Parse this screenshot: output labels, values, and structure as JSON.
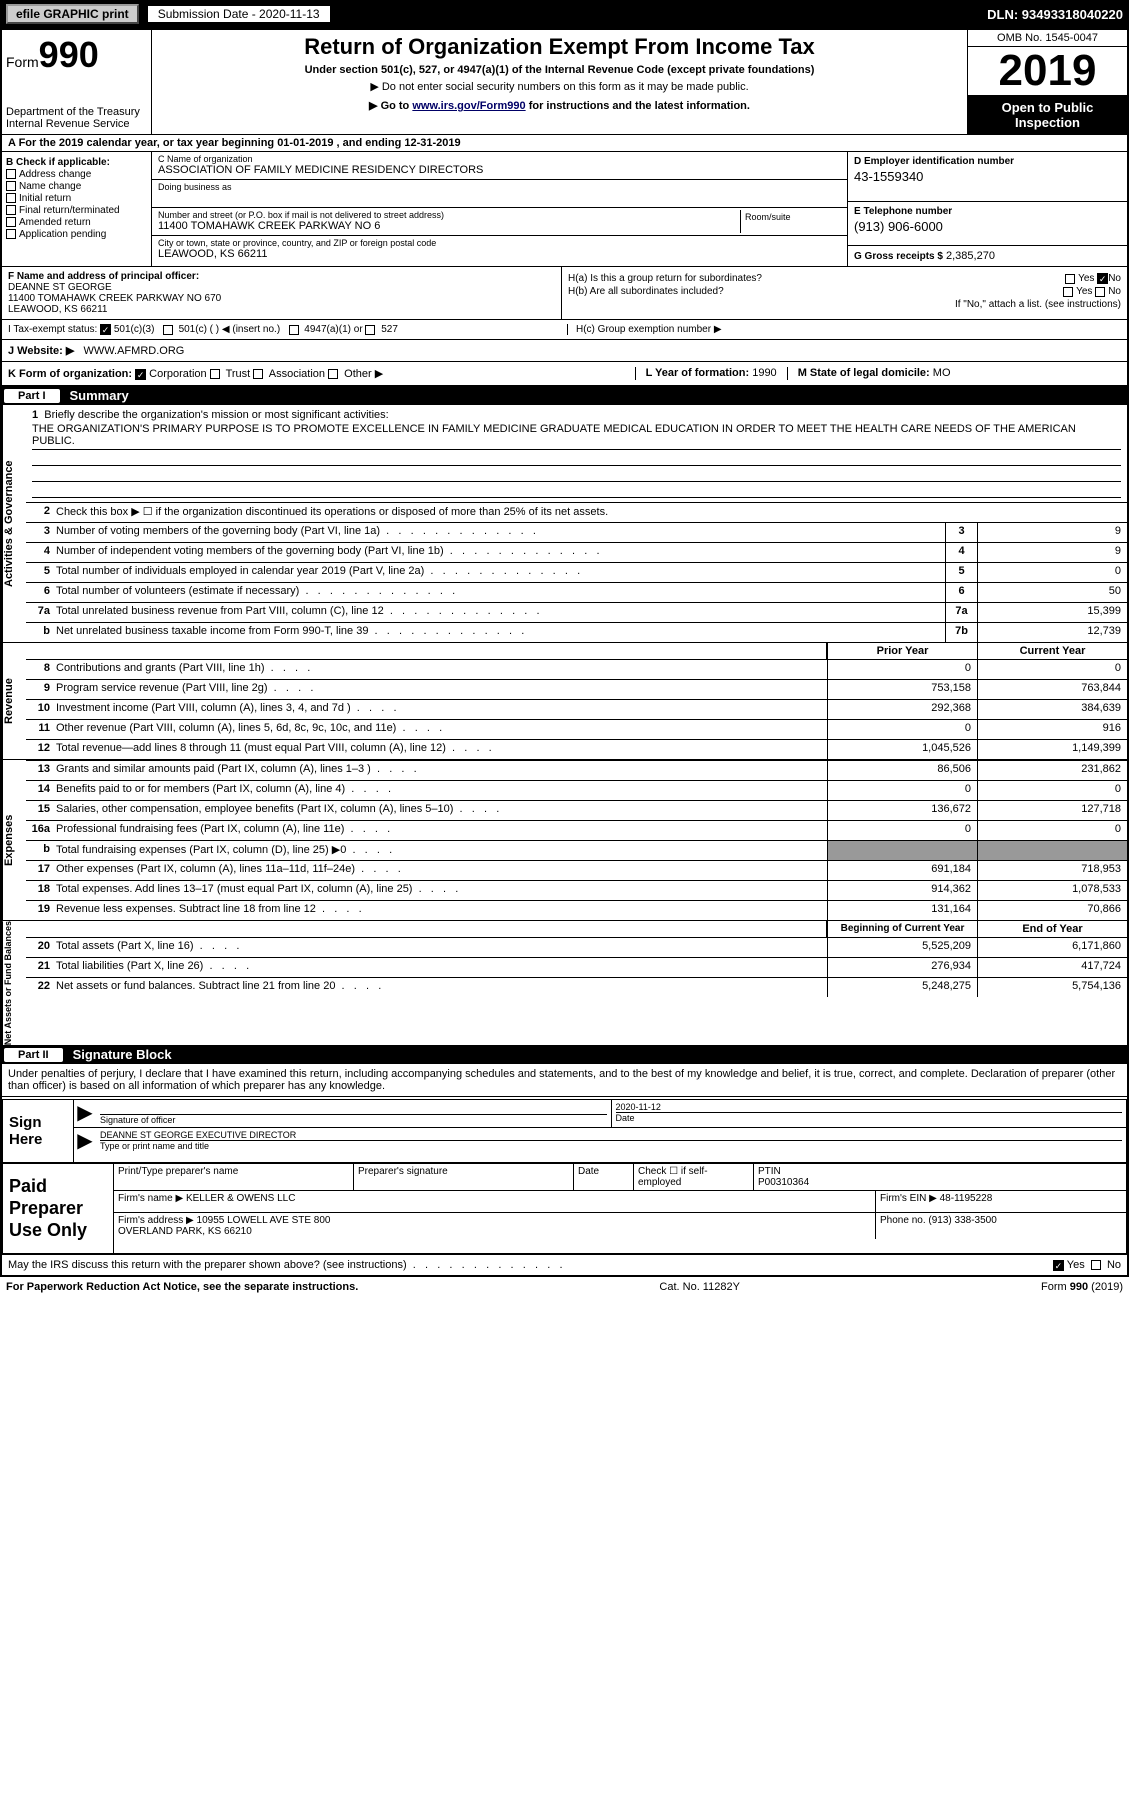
{
  "topbar": {
    "efile": "efile GRAPHIC print",
    "submission": "Submission Date - 2020-11-13",
    "dln": "DLN: 93493318040220"
  },
  "header": {
    "form_label": "Form",
    "form_num": "990",
    "dept": "Department of the Treasury\nInternal Revenue Service",
    "title": "Return of Organization Exempt From Income Tax",
    "sub1": "Under section 501(c), 527, or 4947(a)(1) of the Internal Revenue Code (except private foundations)",
    "sub2": "Do not enter social security numbers on this form as it may be made public.",
    "sub3_pre": "Go to ",
    "sub3_link": "www.irs.gov/Form990",
    "sub3_post": " for instructions and the latest information.",
    "omb": "OMB No. 1545-0047",
    "year": "2019",
    "inspection": "Open to Public Inspection"
  },
  "period": {
    "text": "A For the 2019 calendar year, or tax year beginning 01-01-2019    , and ending 12-31-2019"
  },
  "boxB": {
    "header": "B Check if applicable:",
    "opts": [
      "Address change",
      "Name change",
      "Initial return",
      "Final return/terminated",
      "Amended return",
      "Application pending"
    ]
  },
  "boxC": {
    "name_lbl": "C Name of organization",
    "name": "ASSOCIATION OF FAMILY MEDICINE RESIDENCY DIRECTORS",
    "dba_lbl": "Doing business as",
    "addr_lbl": "Number and street (or P.O. box if mail is not delivered to street address)",
    "room_lbl": "Room/suite",
    "addr": "11400 TOMAHAWK CREEK PARKWAY NO 6",
    "city_lbl": "City or town, state or province, country, and ZIP or foreign postal code",
    "city": "LEAWOOD, KS  66211"
  },
  "boxD": {
    "lbl": "D Employer identification number",
    "val": "43-1559340"
  },
  "boxE": {
    "lbl": "E Telephone number",
    "val": "(913) 906-6000"
  },
  "boxG": {
    "lbl": "G Gross receipts $",
    "val": "2,385,270"
  },
  "boxF": {
    "lbl": "F Name and address of principal officer:",
    "name": "DEANNE ST GEORGE",
    "addr": "11400 TOMAHAWK CREEK PARKWAY NO 670\nLEAWOOD, KS  66211"
  },
  "boxH": {
    "a": "H(a)  Is this a group return for subordinates?",
    "a_yes": "Yes",
    "a_no": "No",
    "b": "H(b)  Are all subordinates included?",
    "b_note": "If \"No,\" attach a list. (see instructions)",
    "c": "H(c)  Group exemption number ▶"
  },
  "boxI": {
    "lbl": "I   Tax-exempt status:",
    "o1": "501(c)(3)",
    "o2": "501(c) (  ) ◀ (insert no.)",
    "o3": "4947(a)(1) or",
    "o4": "527"
  },
  "boxJ": {
    "lbl": "J   Website: ▶",
    "val": "WWW.AFMRD.ORG"
  },
  "boxK": {
    "lbl": "K Form of organization:",
    "opts": [
      "Corporation",
      "Trust",
      "Association",
      "Other ▶"
    ]
  },
  "boxL": {
    "lbl": "L Year of formation:",
    "val": "1990"
  },
  "boxM": {
    "lbl": "M State of legal domicile:",
    "val": "MO"
  },
  "part1": {
    "pt": "Part I",
    "title": "Summary"
  },
  "mission": {
    "num": "1",
    "lbl": "Briefly describe the organization's mission or most significant activities:",
    "text": "THE ORGANIZATION'S PRIMARY PURPOSE IS TO PROMOTE EXCELLENCE IN FAMILY MEDICINE GRADUATE MEDICAL EDUCATION IN ORDER TO MEET THE HEALTH CARE NEEDS OF THE AMERICAN PUBLIC."
  },
  "side_labels": {
    "ag": "Activities & Governance",
    "rev": "Revenue",
    "exp": "Expenses",
    "net": "Net Assets or Fund Balances"
  },
  "lines_single": [
    {
      "n": "2",
      "t": "Check this box ▶ ☐  if the organization discontinued its operations or disposed of more than 25% of its net assets.",
      "box": "",
      "v": ""
    },
    {
      "n": "3",
      "t": "Number of voting members of the governing body (Part VI, line 1a)",
      "box": "3",
      "v": "9"
    },
    {
      "n": "4",
      "t": "Number of independent voting members of the governing body (Part VI, line 1b)",
      "box": "4",
      "v": "9"
    },
    {
      "n": "5",
      "t": "Total number of individuals employed in calendar year 2019 (Part V, line 2a)",
      "box": "5",
      "v": "0"
    },
    {
      "n": "6",
      "t": "Total number of volunteers (estimate if necessary)",
      "box": "6",
      "v": "50"
    },
    {
      "n": "7a",
      "t": "Total unrelated business revenue from Part VIII, column (C), line 12",
      "box": "7a",
      "v": "15,399"
    },
    {
      "n": "b",
      "t": "Net unrelated business taxable income from Form 990-T, line 39",
      "box": "7b",
      "v": "12,739"
    }
  ],
  "col_hdr": {
    "prior": "Prior Year",
    "current": "Current Year"
  },
  "rev_lines": [
    {
      "n": "8",
      "t": "Contributions and grants (Part VIII, line 1h)",
      "p": "0",
      "c": "0"
    },
    {
      "n": "9",
      "t": "Program service revenue (Part VIII, line 2g)",
      "p": "753,158",
      "c": "763,844"
    },
    {
      "n": "10",
      "t": "Investment income (Part VIII, column (A), lines 3, 4, and 7d )",
      "p": "292,368",
      "c": "384,639"
    },
    {
      "n": "11",
      "t": "Other revenue (Part VIII, column (A), lines 5, 6d, 8c, 9c, 10c, and 11e)",
      "p": "0",
      "c": "916"
    },
    {
      "n": "12",
      "t": "Total revenue—add lines 8 through 11 (must equal Part VIII, column (A), line 12)",
      "p": "1,045,526",
      "c": "1,149,399"
    }
  ],
  "exp_lines": [
    {
      "n": "13",
      "t": "Grants and similar amounts paid (Part IX, column (A), lines 1–3 )",
      "p": "86,506",
      "c": "231,862"
    },
    {
      "n": "14",
      "t": "Benefits paid to or for members (Part IX, column (A), line 4)",
      "p": "0",
      "c": "0"
    },
    {
      "n": "15",
      "t": "Salaries, other compensation, employee benefits (Part IX, column (A), lines 5–10)",
      "p": "136,672",
      "c": "127,718"
    },
    {
      "n": "16a",
      "t": "Professional fundraising fees (Part IX, column (A), line 11e)",
      "p": "0",
      "c": "0"
    },
    {
      "n": "b",
      "t": "Total fundraising expenses (Part IX, column (D), line 25) ▶0",
      "p": "",
      "c": "",
      "gray": true
    },
    {
      "n": "17",
      "t": "Other expenses (Part IX, column (A), lines 11a–11d, 11f–24e)",
      "p": "691,184",
      "c": "718,953"
    },
    {
      "n": "18",
      "t": "Total expenses. Add lines 13–17 (must equal Part IX, column (A), line 25)",
      "p": "914,362",
      "c": "1,078,533"
    },
    {
      "n": "19",
      "t": "Revenue less expenses. Subtract line 18 from line 12",
      "p": "131,164",
      "c": "70,866"
    }
  ],
  "bal_hdr": {
    "beg": "Beginning of Current Year",
    "end": "End of Year"
  },
  "bal_lines": [
    {
      "n": "20",
      "t": "Total assets (Part X, line 16)",
      "p": "5,525,209",
      "c": "6,171,860"
    },
    {
      "n": "21",
      "t": "Total liabilities (Part X, line 26)",
      "p": "276,934",
      "c": "417,724"
    },
    {
      "n": "22",
      "t": "Net assets or fund balances. Subtract line 21 from line 20",
      "p": "5,248,275",
      "c": "5,754,136"
    }
  ],
  "part2": {
    "pt": "Part II",
    "title": "Signature Block"
  },
  "sig_penalty": "Under penalties of perjury, I declare that I have examined this return, including accompanying schedules and statements, and to the best of my knowledge and belief, it is true, correct, and complete. Declaration of preparer (other than officer) is based on all information of which preparer has any knowledge.",
  "sign": {
    "label": "Sign Here",
    "sig_lbl": "Signature of officer",
    "date_lbl": "Date",
    "date_val": "2020-11-12",
    "name": "DEANNE ST GEORGE  EXECUTIVE DIRECTOR",
    "name_lbl": "Type or print name and title"
  },
  "paid": {
    "label": "Paid Preparer Use Only",
    "pt_name_lbl": "Print/Type preparer's name",
    "sig_lbl": "Preparer's signature",
    "date_lbl": "Date",
    "check_lbl": "Check ☐ if self-employed",
    "ptin_lbl": "PTIN",
    "ptin": "P00310364",
    "firm_lbl": "Firm's name   ▶",
    "firm": "KELLER & OWENS LLC",
    "ein_lbl": "Firm's EIN ▶",
    "ein": "48-1195228",
    "addr_lbl": "Firm's address ▶",
    "addr": "10955 LOWELL AVE STE 800\nOVERLAND PARK, KS  66210",
    "phone_lbl": "Phone no.",
    "phone": "(913) 338-3500"
  },
  "discuss": "May the IRS discuss this return with the preparer shown above? (see instructions)",
  "discuss_yes": "Yes",
  "discuss_no": "No",
  "footer": {
    "left": "For Paperwork Reduction Act Notice, see the separate instructions.",
    "mid": "Cat. No. 11282Y",
    "right": "Form 990 (2019)"
  }
}
